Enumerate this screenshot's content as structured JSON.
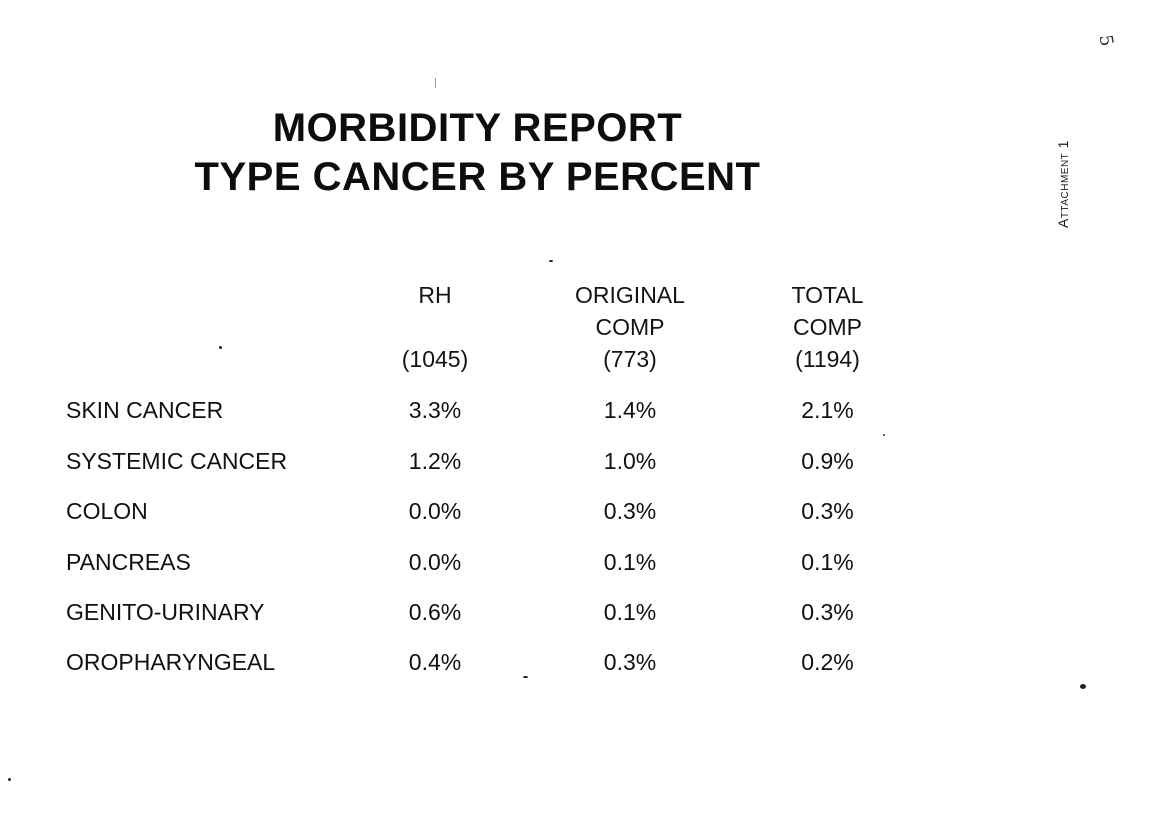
{
  "title": {
    "line1": "MORBIDITY REPORT",
    "line2": "TYPE CANCER BY PERCENT"
  },
  "side_note": "Attachment 1",
  "page_number": "5",
  "columns": [
    {
      "name_line1": "RH",
      "name_line2": "",
      "count": "(1045)"
    },
    {
      "name_line1": "ORIGINAL",
      "name_line2": "COMP",
      "count": "(773)"
    },
    {
      "name_line1": "TOTAL",
      "name_line2": "COMP",
      "count": "(1194)"
    }
  ],
  "rows": [
    {
      "label": "SKIN CANCER",
      "values": [
        "3.3%",
        "1.4%",
        "2.1%"
      ]
    },
    {
      "label": "SYSTEMIC CANCER",
      "values": [
        "1.2%",
        "1.0%",
        "0.9%"
      ]
    },
    {
      "label": "COLON",
      "values": [
        "0.0%",
        "0.3%",
        "0.3%"
      ]
    },
    {
      "label": "PANCREAS",
      "values": [
        "0.0%",
        "0.1%",
        "0.1%"
      ]
    },
    {
      "label": "GENITO-URINARY",
      "values": [
        "0.6%",
        "0.1%",
        "0.3%"
      ]
    },
    {
      "label": "OROPHARYNGEAL",
      "values": [
        "0.4%",
        "0.3%",
        "0.2%"
      ]
    }
  ]
}
